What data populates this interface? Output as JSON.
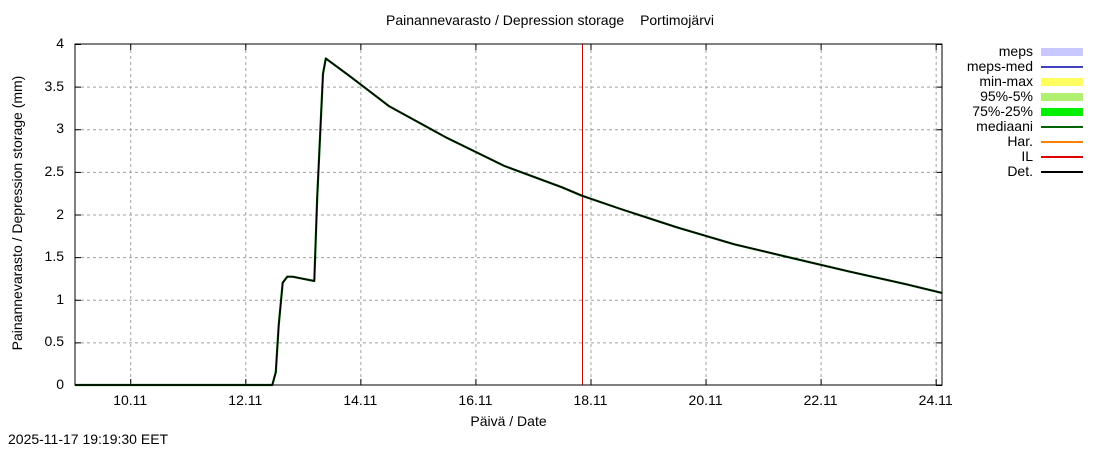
{
  "title": {
    "main": "Painannevarasto / Depression storage",
    "station": "Portimojärvi"
  },
  "timestamp": "2025-11-17 19:19:30 EET",
  "chart_data": {
    "type": "line",
    "title": "Painannevarasto / Depression storage   Portimojärvi",
    "xlabel": "Päivä / Date",
    "ylabel": "Painannevarasto / Depression storage (mm)",
    "ylim": [
      0,
      4
    ],
    "xlim_days": [
      9.04,
      24.11
    ],
    "x_tick_labels": [
      "10.11",
      "12.11",
      "14.11",
      "16.11",
      "18.11",
      "20.11",
      "22.11",
      "24.11"
    ],
    "y_tick_labels": [
      "0",
      "0.5",
      "1",
      "1.5",
      "2",
      "2.5",
      "3",
      "3.5",
      "4"
    ],
    "grid": true,
    "legend_position": "right",
    "legend": [
      {
        "label": "meps",
        "color": "#c8c8ff",
        "style": "band"
      },
      {
        "label": "meps-med",
        "color": "#4040c0",
        "style": "line"
      },
      {
        "label": "min-max",
        "color": "#ffff60",
        "style": "band"
      },
      {
        "label": "95%-5%",
        "color": "#b0f070",
        "style": "band"
      },
      {
        "label": "75%-25%",
        "color": "#00f000",
        "style": "band"
      },
      {
        "label": "mediaani",
        "color": "#006400",
        "style": "line"
      },
      {
        "label": "Har.",
        "color": "#ff8000",
        "style": "line"
      },
      {
        "label": "IL",
        "color": "#e00000",
        "style": "line"
      },
      {
        "label": "Det.",
        "color": "#000000",
        "style": "line"
      }
    ],
    "vertical_marker": {
      "label": "IL",
      "x_day": 17.85,
      "color": "#cc0000"
    },
    "series": [
      {
        "name": "Det.",
        "color": "#000000",
        "x_day": [
          9.04,
          12.47,
          12.53,
          12.58,
          12.65,
          12.73,
          12.82,
          13.2,
          13.25,
          13.35,
          13.4,
          13.8,
          14.5,
          15.5,
          16.5,
          17.5,
          17.85,
          18.5,
          19.5,
          20.5,
          21.5,
          22.5,
          23.5,
          24.11
        ],
        "values": [
          0,
          0,
          0.15,
          0.7,
          1.2,
          1.27,
          1.27,
          1.22,
          2.2,
          3.65,
          3.83,
          3.63,
          3.27,
          2.9,
          2.57,
          2.32,
          2.22,
          2.07,
          1.85,
          1.65,
          1.49,
          1.33,
          1.18,
          1.08
        ]
      }
    ]
  }
}
